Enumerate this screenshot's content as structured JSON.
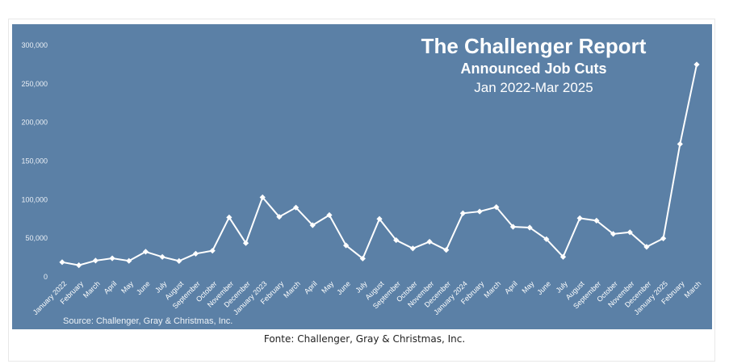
{
  "caption": "Fonte: Challenger, Gray & Christmas, Inc.",
  "chart_data": {
    "type": "line",
    "title": "The Challenger Report",
    "subtitle": "Announced Job Cuts",
    "period": "Jan 2022-Mar 2025",
    "source": "Source: Challenger, Gray & Christmas, Inc.",
    "xlabel": "",
    "ylabel": "",
    "ylim": [
      0,
      300000
    ],
    "yticks": [
      "0",
      "50,000",
      "100,000",
      "150,000",
      "200,000",
      "250,000",
      "300,000"
    ],
    "ytick_values": [
      0,
      50000,
      100000,
      150000,
      200000,
      250000,
      300000
    ],
    "grid": false,
    "categories": [
      "January 2022",
      "February",
      "March",
      "April",
      "May",
      "June",
      "July",
      "August",
      "September",
      "October",
      "November",
      "December",
      "January 2023",
      "February",
      "March",
      "April",
      "May",
      "June",
      "July",
      "August",
      "September",
      "October",
      "November",
      "December",
      "January 2024",
      "February",
      "March",
      "April",
      "May",
      "June",
      "July",
      "August",
      "September",
      "October",
      "November",
      "December",
      "January 2025",
      "February",
      "March"
    ],
    "series": [
      {
        "values": [
          19000,
          15000,
          21000,
          24000,
          20700,
          32500,
          25800,
          20500,
          30000,
          33800,
          77000,
          43700,
          103000,
          77700,
          89700,
          66900,
          80000,
          40700,
          23700,
          75000,
          47500,
          36800,
          45500,
          34800,
          82300,
          84600,
          90300,
          64800,
          63800,
          48800,
          25900,
          75900,
          72800,
          55600,
          57700,
          38800,
          49800,
          172000,
          275000
        ]
      }
    ],
    "line_color": "#ffffff",
    "background_color": "#5b80a6"
  }
}
